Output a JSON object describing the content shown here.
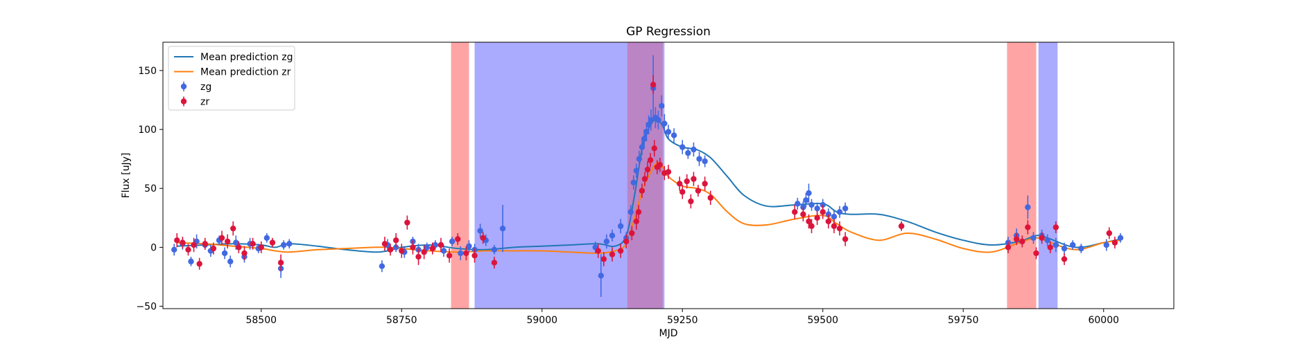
{
  "chart_data": {
    "type": "scatter",
    "title": "GP Regression",
    "xlabel": "MJD",
    "ylabel": "Flux [uJy]",
    "xlim": [
      58325,
      60125
    ],
    "ylim": [
      -52,
      174
    ],
    "xticks": [
      58500,
      58750,
      59000,
      59250,
      59500,
      59750,
      60000
    ],
    "yticks": [
      -50,
      0,
      50,
      100,
      150
    ],
    "grid": false,
    "legend_position": "top-left",
    "legend": [
      "Mean prediction zg",
      "Mean prediction zr",
      "zg",
      "zr"
    ],
    "shaded_regions": [
      {
        "x0": 58838,
        "x1": 58870,
        "color": "#ff5a5a"
      },
      {
        "x0": 58880,
        "x1": 59218,
        "color": "#6464ff"
      },
      {
        "x0": 59152,
        "x1": 59215,
        "color": "#c86496"
      },
      {
        "x0": 59828,
        "x1": 59880,
        "color": "#ff5a5a"
      },
      {
        "x0": 59884,
        "x1": 59918,
        "color": "#6464ff"
      }
    ],
    "series": [
      {
        "name": "Mean prediction zg",
        "kind": "line",
        "color": "#1f77b4",
        "x": [
          58350,
          58400,
          58450,
          58500,
          58525,
          58550,
          58600,
          58650,
          58700,
          58725,
          58750,
          58800,
          58850,
          58900,
          58950,
          59000,
          59050,
          59100,
          59130,
          59150,
          59165,
          59180,
          59195,
          59205,
          59215,
          59225,
          59250,
          59275,
          59300,
          59330,
          59360,
          59400,
          59450,
          59500,
          59525,
          59550,
          59600,
          59650,
          59700,
          59750,
          59800,
          59850,
          59880,
          59900,
          59950,
          60000,
          60030
        ],
        "y": [
          1,
          2,
          3,
          2,
          0,
          3,
          1,
          -2,
          -4,
          -3,
          0,
          2,
          -1,
          -2,
          0,
          1,
          2,
          3,
          1,
          10,
          45,
          88,
          105,
          108,
          103,
          92,
          85,
          83,
          76,
          60,
          44,
          35,
          36,
          37,
          30,
          28,
          28,
          22,
          13,
          6,
          2,
          5,
          10,
          8,
          0,
          4,
          7
        ]
      },
      {
        "name": "Mean prediction zr",
        "kind": "line",
        "color": "#ff7f0e",
        "x": [
          58350,
          58400,
          58450,
          58500,
          58525,
          58550,
          58600,
          58650,
          58700,
          58725,
          58750,
          58800,
          58850,
          58900,
          58950,
          59000,
          59050,
          59100,
          59130,
          59150,
          59165,
          59180,
          59195,
          59205,
          59215,
          59225,
          59250,
          59275,
          59300,
          59330,
          59360,
          59400,
          59450,
          59500,
          59525,
          59550,
          59600,
          59650,
          59700,
          59750,
          59800,
          59850,
          59880,
          59900,
          59950,
          60000,
          60030
        ],
        "y": [
          4,
          3,
          1,
          -1,
          -3,
          -4,
          -2,
          -1,
          0,
          0,
          -1,
          -3,
          -4,
          -3,
          -3,
          -3,
          -4,
          -5,
          -3,
          3,
          25,
          50,
          65,
          72,
          68,
          60,
          52,
          50,
          45,
          30,
          20,
          19,
          24,
          27,
          20,
          13,
          6,
          12,
          7,
          -1,
          -4,
          4,
          8,
          5,
          -2,
          4,
          6
        ]
      },
      {
        "name": "zg",
        "kind": "errorbar-scatter",
        "color": "#4169e1",
        "points": [
          [
            58345,
            -2,
            5
          ],
          [
            58360,
            3,
            5
          ],
          [
            58375,
            -12,
            4
          ],
          [
            58385,
            5,
            6
          ],
          [
            58400,
            2,
            4
          ],
          [
            58410,
            -3,
            5
          ],
          [
            58425,
            6,
            4
          ],
          [
            58435,
            -5,
            5
          ],
          [
            58445,
            -12,
            5
          ],
          [
            58455,
            4,
            6
          ],
          [
            58470,
            -8,
            5
          ],
          [
            58480,
            3,
            5
          ],
          [
            58495,
            -1,
            4
          ],
          [
            58510,
            8,
            4
          ],
          [
            58535,
            -18,
            8
          ],
          [
            58540,
            2,
            4
          ],
          [
            58550,
            3,
            4
          ],
          [
            58715,
            -16,
            5
          ],
          [
            58725,
            2,
            5
          ],
          [
            58740,
            0,
            4
          ],
          [
            58755,
            -4,
            5
          ],
          [
            58770,
            5,
            4
          ],
          [
            58780,
            -2,
            5
          ],
          [
            58795,
            0,
            4
          ],
          [
            58810,
            2,
            4
          ],
          [
            58825,
            -3,
            5
          ],
          [
            58840,
            5,
            4
          ],
          [
            58855,
            -5,
            6
          ],
          [
            58870,
            1,
            5
          ],
          [
            58880,
            -2,
            5
          ],
          [
            58890,
            14,
            6
          ],
          [
            58900,
            6,
            5
          ],
          [
            58915,
            -2,
            4
          ],
          [
            58930,
            16,
            20
          ],
          [
            59095,
            0,
            5
          ],
          [
            59105,
            -24,
            18
          ],
          [
            59115,
            5,
            6
          ],
          [
            59125,
            10,
            5
          ],
          [
            59140,
            18,
            6
          ],
          [
            59150,
            8,
            5
          ],
          [
            59158,
            30,
            6
          ],
          [
            59163,
            55,
            6
          ],
          [
            59168,
            65,
            6
          ],
          [
            59173,
            75,
            7
          ],
          [
            59178,
            85,
            7
          ],
          [
            59182,
            92,
            8
          ],
          [
            59186,
            98,
            8
          ],
          [
            59190,
            104,
            8
          ],
          [
            59194,
            108,
            9
          ],
          [
            59198,
            135,
            28
          ],
          [
            59202,
            110,
            9
          ],
          [
            59207,
            108,
            8
          ],
          [
            59213,
            120,
            9
          ],
          [
            59218,
            105,
            8
          ],
          [
            59225,
            98,
            6
          ],
          [
            59235,
            95,
            6
          ],
          [
            59250,
            85,
            6
          ],
          [
            59260,
            80,
            5
          ],
          [
            59270,
            83,
            6
          ],
          [
            59280,
            75,
            6
          ],
          [
            59290,
            73,
            5
          ],
          [
            59455,
            37,
            5
          ],
          [
            59465,
            34,
            5
          ],
          [
            59470,
            40,
            6
          ],
          [
            59475,
            46,
            8
          ],
          [
            59480,
            36,
            5
          ],
          [
            59490,
            33,
            5
          ],
          [
            59500,
            36,
            5
          ],
          [
            59510,
            28,
            5
          ],
          [
            59520,
            26,
            5
          ],
          [
            59530,
            30,
            5
          ],
          [
            59540,
            33,
            5
          ],
          [
            59640,
            18,
            4
          ],
          [
            59830,
            4,
            5
          ],
          [
            59845,
            10,
            6
          ],
          [
            59855,
            5,
            5
          ],
          [
            59865,
            34,
            10
          ],
          [
            59875,
            8,
            5
          ],
          [
            59890,
            10,
            5
          ],
          [
            59900,
            6,
            5
          ],
          [
            59915,
            2,
            6
          ],
          [
            59930,
            -1,
            5
          ],
          [
            59945,
            2,
            4
          ],
          [
            59960,
            -1,
            4
          ],
          [
            60005,
            2,
            5
          ],
          [
            60030,
            8,
            4
          ]
        ]
      },
      {
        "name": "zr",
        "kind": "errorbar-scatter",
        "color": "#dc143c",
        "points": [
          [
            58350,
            6,
            6
          ],
          [
            58360,
            4,
            5
          ],
          [
            58370,
            -2,
            5
          ],
          [
            58380,
            2,
            6
          ],
          [
            58390,
            -14,
            5
          ],
          [
            58400,
            3,
            5
          ],
          [
            58415,
            -1,
            5
          ],
          [
            58430,
            8,
            6
          ],
          [
            58440,
            5,
            6
          ],
          [
            58450,
            16,
            6
          ],
          [
            58460,
            0,
            5
          ],
          [
            58470,
            -5,
            6
          ],
          [
            58485,
            3,
            5
          ],
          [
            58500,
            0,
            5
          ],
          [
            58520,
            4,
            4
          ],
          [
            58535,
            -13,
            7
          ],
          [
            58720,
            3,
            6
          ],
          [
            58730,
            -2,
            5
          ],
          [
            58740,
            6,
            6
          ],
          [
            58750,
            -3,
            6
          ],
          [
            58760,
            21,
            6
          ],
          [
            58770,
            0,
            6
          ],
          [
            58780,
            -8,
            7
          ],
          [
            58790,
            -4,
            6
          ],
          [
            58805,
            -1,
            5
          ],
          [
            58820,
            2,
            6
          ],
          [
            58835,
            -7,
            6
          ],
          [
            58850,
            7,
            5
          ],
          [
            58865,
            -5,
            6
          ],
          [
            58880,
            -7,
            6
          ],
          [
            58895,
            8,
            5
          ],
          [
            58915,
            -13,
            5
          ],
          [
            59100,
            -3,
            6
          ],
          [
            59110,
            -10,
            6
          ],
          [
            59125,
            -6,
            6
          ],
          [
            59140,
            -3,
            6
          ],
          [
            59150,
            5,
            6
          ],
          [
            59160,
            12,
            6
          ],
          [
            59168,
            22,
            7
          ],
          [
            59172,
            30,
            6
          ],
          [
            59178,
            48,
            6
          ],
          [
            59183,
            58,
            6
          ],
          [
            59188,
            66,
            7
          ],
          [
            59193,
            74,
            6
          ],
          [
            59198,
            138,
            8
          ],
          [
            59200,
            84,
            7
          ],
          [
            59205,
            68,
            6
          ],
          [
            59210,
            70,
            6
          ],
          [
            59218,
            63,
            6
          ],
          [
            59225,
            64,
            6
          ],
          [
            59245,
            54,
            6
          ],
          [
            59250,
            47,
            6
          ],
          [
            59258,
            56,
            6
          ],
          [
            59265,
            39,
            6
          ],
          [
            59270,
            58,
            6
          ],
          [
            59278,
            48,
            5
          ],
          [
            59290,
            54,
            6
          ],
          [
            59300,
            42,
            6
          ],
          [
            59450,
            30,
            6
          ],
          [
            59465,
            28,
            6
          ],
          [
            59475,
            22,
            6
          ],
          [
            59480,
            18,
            6
          ],
          [
            59490,
            25,
            6
          ],
          [
            59500,
            30,
            6
          ],
          [
            59510,
            22,
            6
          ],
          [
            59520,
            18,
            6
          ],
          [
            59530,
            16,
            6
          ],
          [
            59540,
            7,
            6
          ],
          [
            59640,
            18,
            4
          ],
          [
            59830,
            0,
            5
          ],
          [
            59845,
            7,
            5
          ],
          [
            59855,
            5,
            5
          ],
          [
            59865,
            17,
            6
          ],
          [
            59880,
            -5,
            5
          ],
          [
            59890,
            8,
            5
          ],
          [
            59905,
            0,
            5
          ],
          [
            59915,
            17,
            5
          ],
          [
            59930,
            -10,
            5
          ],
          [
            60010,
            12,
            5
          ],
          [
            60020,
            4,
            5
          ]
        ]
      }
    ]
  }
}
